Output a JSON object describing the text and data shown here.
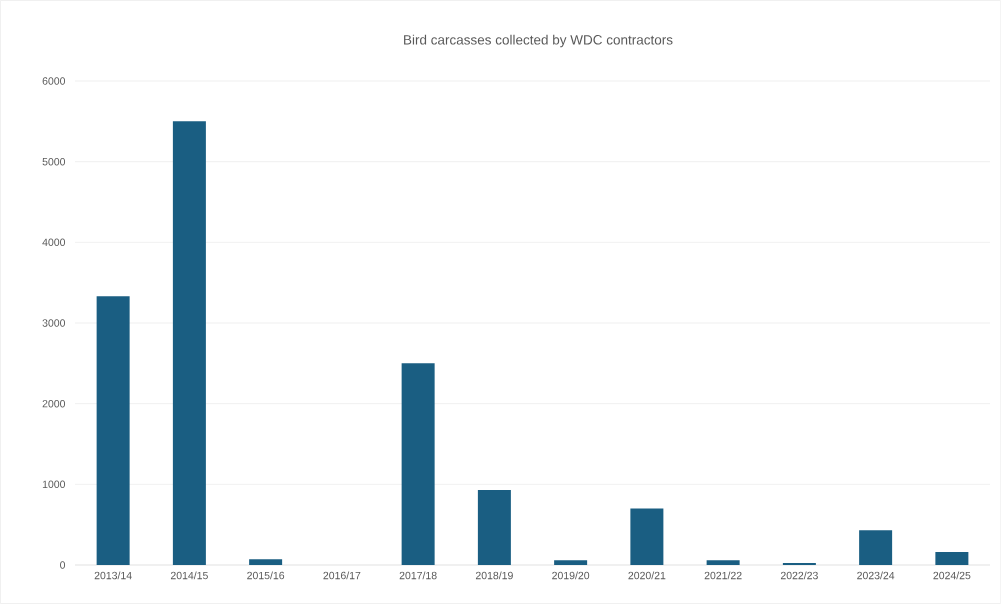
{
  "chart_data": {
    "type": "bar",
    "title": "Bird carcasses collected by WDC contractors",
    "categories": [
      "2013/14",
      "2014/15",
      "2015/16",
      "2016/17",
      "2017/18",
      "2018/19",
      "2019/20",
      "2020/21",
      "2021/22",
      "2022/23",
      "2023/24",
      "2024/25"
    ],
    "values": [
      3330,
      5500,
      70,
      0,
      2500,
      930,
      60,
      700,
      60,
      25,
      430,
      160
    ],
    "color": "#1a5e82",
    "ylim": [
      0,
      6000
    ],
    "yticks": [
      0,
      1000,
      2000,
      3000,
      4000,
      5000,
      6000
    ],
    "grid": "y"
  }
}
